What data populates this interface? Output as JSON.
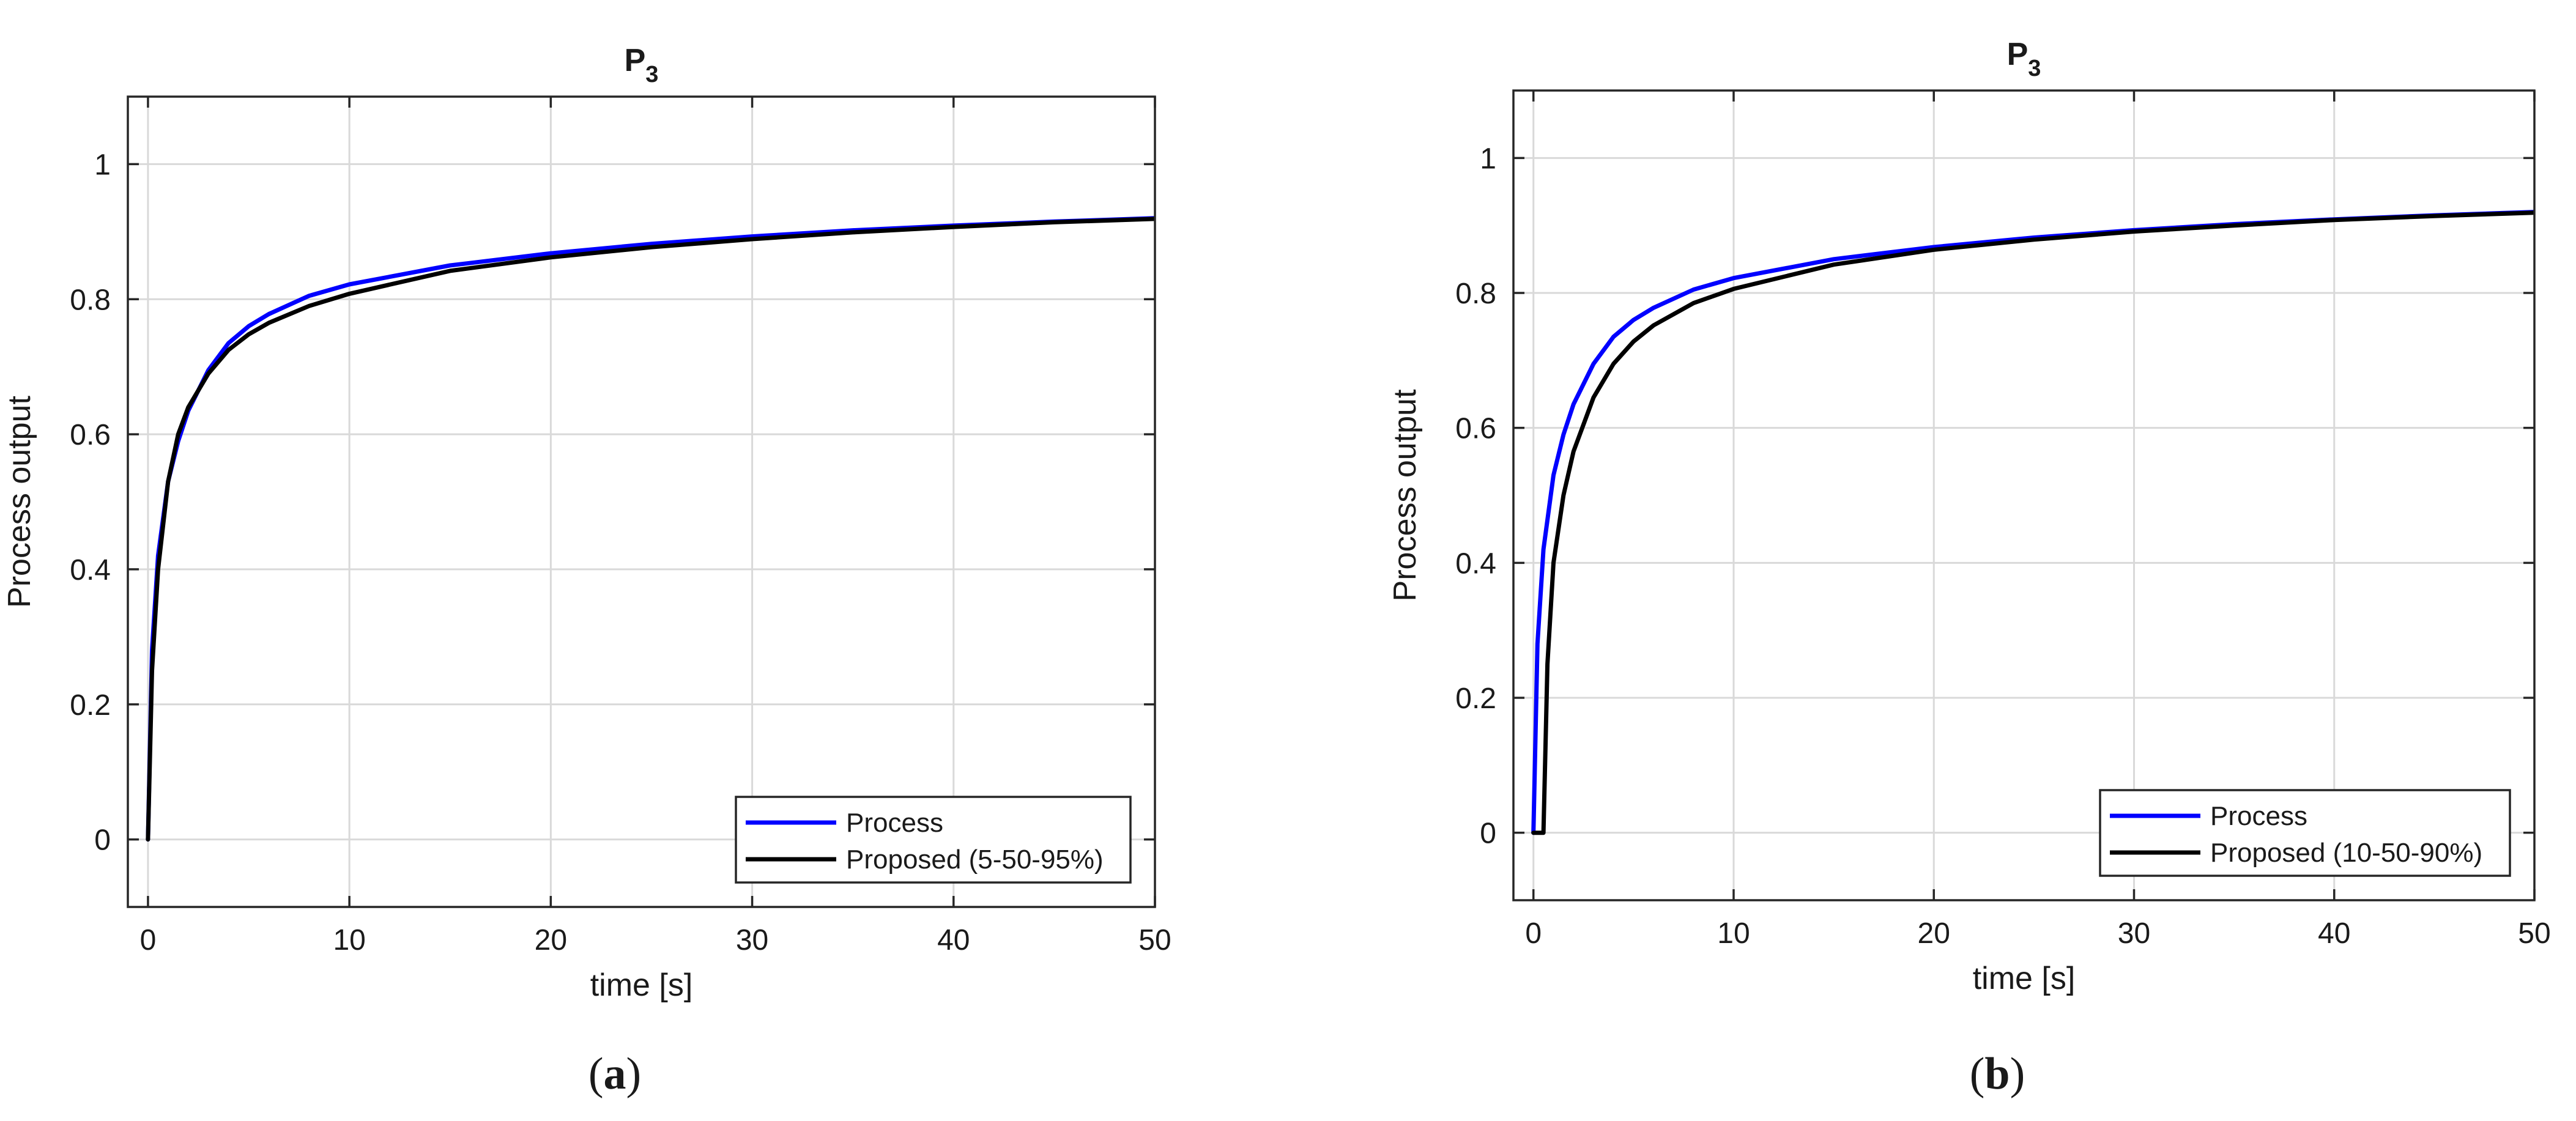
{
  "chart_data": [
    {
      "type": "line",
      "panel": "(a)",
      "caption_prefix": "(",
      "caption_letter": "a",
      "caption_suffix": ")",
      "title_main": "P",
      "title_sub": "3",
      "xlabel": "time [s]",
      "ylabel": "Process output",
      "xlim": [
        -1,
        50
      ],
      "ylim": [
        -0.1,
        1.1
      ],
      "xticks": [
        0,
        10,
        20,
        30,
        40,
        50
      ],
      "yticks": [
        0,
        0.2,
        0.4,
        0.6,
        0.8,
        1
      ],
      "xtick_labels": [
        "0",
        "10",
        "20",
        "30",
        "40",
        "50"
      ],
      "ytick_labels": [
        "0",
        "0.2",
        "0.4",
        "0.6",
        "0.8",
        "1"
      ],
      "grid": true,
      "legend_position": "bottom-right",
      "legend": [
        "Process",
        "Proposed (5-50-95%)"
      ],
      "series": [
        {
          "name": "Process",
          "color": "#0000ff",
          "x": [
            0,
            0.2,
            0.5,
            1,
            1.5,
            2,
            3,
            4,
            5,
            6,
            8,
            10,
            15,
            20,
            25,
            30,
            35,
            40,
            45,
            50
          ],
          "y": [
            0,
            0.28,
            0.42,
            0.53,
            0.59,
            0.635,
            0.695,
            0.735,
            0.76,
            0.778,
            0.805,
            0.822,
            0.85,
            0.868,
            0.882,
            0.893,
            0.902,
            0.909,
            0.915,
            0.92
          ]
        },
        {
          "name": "Proposed (5-50-95%)",
          "color": "#000000",
          "x": [
            0,
            0.2,
            0.5,
            1,
            1.5,
            2,
            3,
            4,
            5,
            6,
            8,
            10,
            15,
            20,
            25,
            30,
            35,
            40,
            45,
            50
          ],
          "y": [
            0,
            0.25,
            0.4,
            0.53,
            0.6,
            0.64,
            0.69,
            0.725,
            0.748,
            0.765,
            0.79,
            0.808,
            0.842,
            0.862,
            0.877,
            0.889,
            0.899,
            0.907,
            0.914,
            0.919
          ]
        }
      ]
    },
    {
      "type": "line",
      "panel": "(b)",
      "caption_prefix": "(",
      "caption_letter": "b",
      "caption_suffix": ")",
      "title_main": "P",
      "title_sub": "3",
      "xlabel": "time [s]",
      "ylabel": "Process output",
      "xlim": [
        -1,
        50
      ],
      "ylim": [
        -0.1,
        1.1
      ],
      "xticks": [
        0,
        10,
        20,
        30,
        40,
        50
      ],
      "yticks": [
        0,
        0.2,
        0.4,
        0.6,
        0.8,
        1
      ],
      "xtick_labels": [
        "0",
        "10",
        "20",
        "30",
        "40",
        "50"
      ],
      "ytick_labels": [
        "0",
        "0.2",
        "0.4",
        "0.6",
        "0.8",
        "1"
      ],
      "grid": true,
      "legend_position": "bottom-right",
      "legend": [
        "Process",
        "Proposed (10-50-90%)"
      ],
      "series": [
        {
          "name": "Process",
          "color": "#0000ff",
          "x": [
            0,
            0.2,
            0.5,
            1,
            1.5,
            2,
            3,
            4,
            5,
            6,
            8,
            10,
            15,
            20,
            25,
            30,
            35,
            40,
            45,
            50
          ],
          "y": [
            0,
            0.28,
            0.42,
            0.53,
            0.59,
            0.635,
            0.695,
            0.735,
            0.76,
            0.778,
            0.805,
            0.822,
            0.85,
            0.868,
            0.882,
            0.893,
            0.902,
            0.909,
            0.915,
            0.92
          ]
        },
        {
          "name": "Proposed (10-50-90%)",
          "color": "#000000",
          "x": [
            0,
            0.5,
            0.5,
            0.7,
            1,
            1.5,
            2,
            3,
            4,
            5,
            6,
            8,
            10,
            15,
            20,
            25,
            30,
            35,
            40,
            45,
            50
          ],
          "y": [
            0,
            0,
            0,
            0.25,
            0.4,
            0.5,
            0.565,
            0.645,
            0.695,
            0.728,
            0.752,
            0.785,
            0.806,
            0.842,
            0.864,
            0.879,
            0.891,
            0.9,
            0.908,
            0.914,
            0.919
          ]
        }
      ]
    }
  ]
}
